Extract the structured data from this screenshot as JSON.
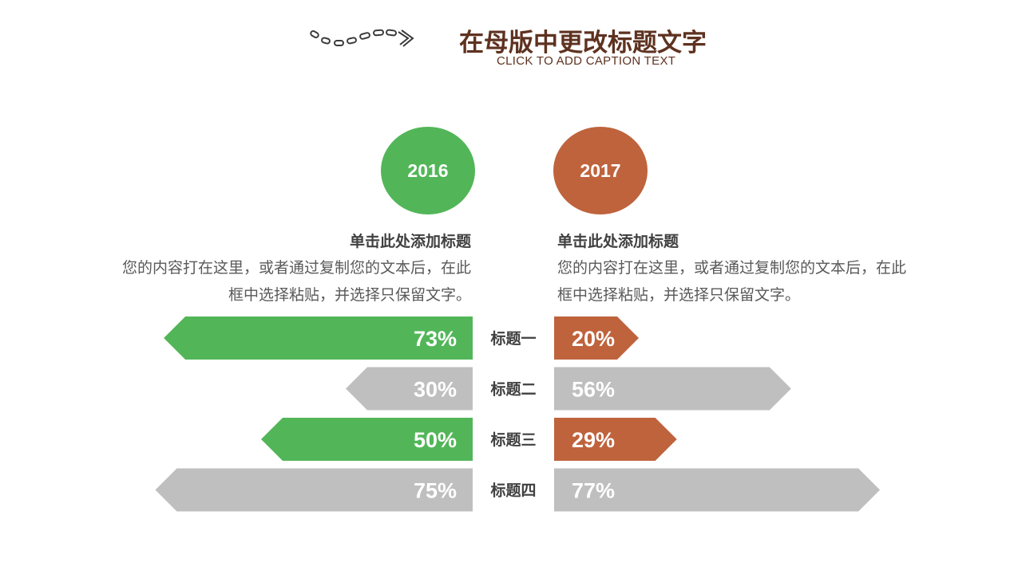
{
  "header": {
    "title": "在母版中更改标题文字",
    "caption": "CLICK TO ADD CAPTION TEXT"
  },
  "colors": {
    "left_highlight": "#52b658",
    "right_highlight": "#bf633d",
    "neutral": "#bfbfbf",
    "title": "#5e3220"
  },
  "icons": {
    "decoration": "dotted-arrow-icon"
  },
  "columns": {
    "left": {
      "year": "2016",
      "heading": "单击此处添加标题",
      "body_line1": "您的内容打在这里，或者通过复制您的文本后，在此",
      "body_line2": "框中选择粘贴，并选择只保留文字。"
    },
    "right": {
      "year": "2017",
      "heading": "单击此处添加标题",
      "body_line1": "您的内容打在这里，或者通过复制您的文本后，在此",
      "body_line2": "框中选择粘贴，并选择只保留文字。"
    }
  },
  "chart_data": {
    "type": "bar",
    "categories": [
      "标题一",
      "标题二",
      "标题三",
      "标题四"
    ],
    "series": [
      {
        "name": "2016",
        "values": [
          73,
          30,
          50,
          75
        ],
        "labels": [
          "73%",
          "30%",
          "50%",
          "75%"
        ],
        "highlight": [
          true,
          false,
          true,
          false
        ]
      },
      {
        "name": "2017",
        "values": [
          20,
          56,
          29,
          77
        ],
        "labels": [
          "20%",
          "56%",
          "29%",
          "77%"
        ],
        "highlight": [
          true,
          false,
          true,
          false
        ]
      }
    ]
  }
}
